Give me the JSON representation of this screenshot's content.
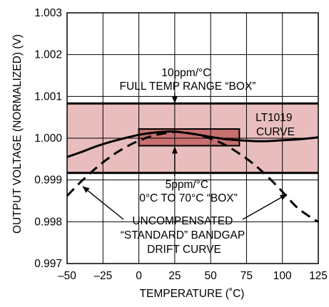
{
  "chart_data": {
    "type": "line",
    "xlabel": "TEMPERATURE (˚C)",
    "ylabel": "OUTPUT VOLTAGE (NORMALIZED) (V)",
    "xlim": [
      -50,
      125
    ],
    "ylim": [
      0.997,
      1.003
    ],
    "xticks": [
      -50,
      -25,
      0,
      25,
      50,
      75,
      100,
      125
    ],
    "yticks": [
      0.997,
      0.998,
      0.999,
      1.0,
      1.001,
      1.002,
      1.003
    ],
    "xtick_labels": [
      "–50",
      "–25",
      "0",
      "25",
      "50",
      "75",
      "100",
      "125"
    ],
    "ytick_labels": [
      "0.997",
      "0.998",
      "0.999",
      "1.000",
      "1.001",
      "1.002",
      "1.003"
    ],
    "grid": true,
    "colors": {
      "band_fill": "#e9bdbd",
      "inner_box_fill": "#c87070",
      "line": "#000000",
      "grid": "#000000"
    },
    "regions": [
      {
        "name": "10ppm/°C FULL TEMP RANGE “BOX”",
        "x_range": [
          -50,
          125
        ],
        "y_range": [
          0.99917,
          1.00083
        ]
      },
      {
        "name": "5ppm/°C 0°C TO 70°C “BOX”",
        "x_range": [
          0,
          70
        ],
        "y_range": [
          0.99982,
          1.00022
        ]
      }
    ],
    "series": [
      {
        "name": "LT1019 CURVE",
        "style": "solid",
        "x": [
          -50,
          -40,
          -30,
          -20,
          -10,
          0,
          10,
          20,
          25,
          30,
          40,
          50,
          60,
          70,
          80,
          90,
          100,
          110,
          120,
          125
        ],
        "y": [
          0.99955,
          0.99967,
          0.9998,
          0.99991,
          1.0,
          1.00008,
          1.00013,
          1.00016,
          1.00016,
          1.00014,
          1.00009,
          1.00003,
          0.99998,
          0.99995,
          0.99993,
          0.99993,
          0.99995,
          0.99997,
          1.0,
          1.00002
        ]
      },
      {
        "name": "UNCOMPENSATED “STANDARD” BANDGAP DRIFT CURVE",
        "style": "dashed",
        "x": [
          -50,
          -40,
          -30,
          -20,
          -10,
          0,
          10,
          20,
          25,
          30,
          40,
          50,
          60,
          70,
          80,
          90,
          100,
          110,
          120,
          125
        ],
        "y": [
          0.99862,
          0.99897,
          0.99928,
          0.99955,
          0.99977,
          0.99994,
          1.00006,
          1.00013,
          1.00015,
          1.00014,
          1.00009,
          0.99999,
          0.99984,
          0.99963,
          0.99938,
          0.99907,
          0.99872,
          0.99835,
          0.9981,
          0.998
        ]
      }
    ],
    "annotations": [
      {
        "lines": [
          "10ppm/°C",
          "FULL TEMP RANGE “BOX”"
        ]
      },
      {
        "lines": [
          "LT1019",
          "CURVE"
        ]
      },
      {
        "lines": [
          "5ppm/°C",
          "0°C TO 70°C “BOX”"
        ]
      },
      {
        "lines": [
          "UNCOMPENSATED",
          "“STANDARD” BANDGAP",
          "DRIFT CURVE"
        ]
      }
    ]
  }
}
